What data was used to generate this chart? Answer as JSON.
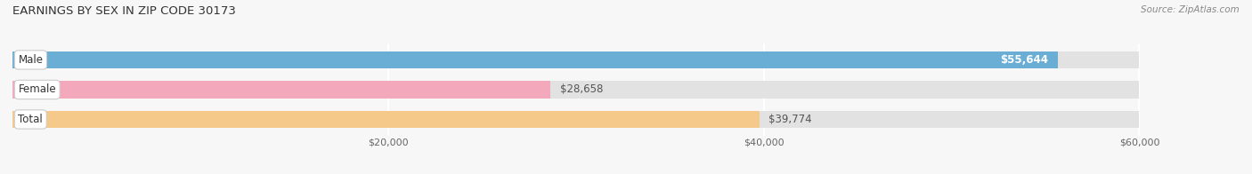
{
  "title": "EARNINGS BY SEX IN ZIP CODE 30173",
  "source": "Source: ZipAtlas.com",
  "categories": [
    "Male",
    "Female",
    "Total"
  ],
  "values": [
    55644,
    28658,
    39774
  ],
  "bar_colors": [
    "#6aaed6",
    "#f4a8bc",
    "#f5c98a"
  ],
  "value_labels": [
    "$55,644",
    "$28,658",
    "$39,774"
  ],
  "value_label_colors": [
    "white",
    "#555555",
    "#555555"
  ],
  "value_label_inside": [
    true,
    false,
    false
  ],
  "xlim_min": 0,
  "xlim_max": 63000,
  "data_max": 60000,
  "xticks": [
    20000,
    40000,
    60000
  ],
  "xticklabels": [
    "$20,000",
    "$40,000",
    "$60,000"
  ],
  "title_fontsize": 9.5,
  "source_fontsize": 7.5,
  "tick_fontsize": 8,
  "label_fontsize": 8.5,
  "bar_height": 0.58,
  "background_color": "#f7f7f7",
  "bar_bg_color": "#e2e2e2",
  "grid_color": "#ffffff"
}
